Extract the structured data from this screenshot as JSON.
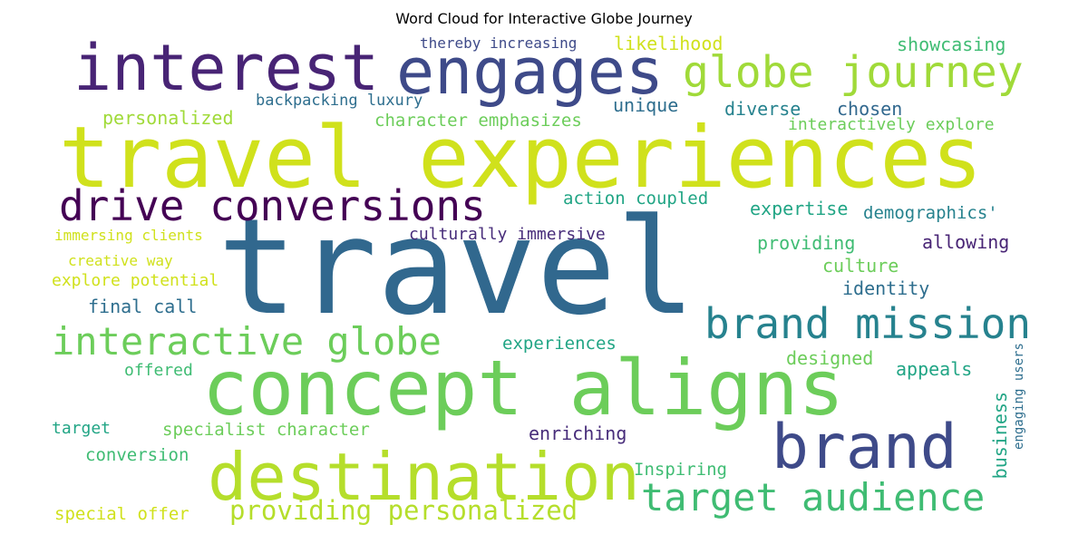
{
  "title": "Word Cloud for Interactive Globe Journey",
  "palette": {
    "dark_purple": "#482475",
    "deep_purple": "#472c7a",
    "indigo": "#3e4a89",
    "blue": "#31688e",
    "steel_blue": "#2e6e8e",
    "teal": "#26828e",
    "sea_green": "#21a585",
    "green": "#3fbc73",
    "light_green": "#6ccd5a",
    "lime": "#b5de2b",
    "yellow": "#d0e11c"
  },
  "words": [
    {
      "text": "travel",
      "color": "#31688e"
    },
    {
      "text": "travel experiences",
      "color": "#d0e11c"
    },
    {
      "text": "concept aligns",
      "color": "#6ccd5a"
    },
    {
      "text": "interest",
      "color": "#482475"
    },
    {
      "text": "engages",
      "color": "#3e4a89"
    },
    {
      "text": "destination",
      "color": "#b5de2b"
    },
    {
      "text": "brand",
      "color": "#3e4a89"
    },
    {
      "text": "globe journey",
      "color": "#a0da39"
    },
    {
      "text": "drive conversions",
      "color": "#440154"
    },
    {
      "text": "brand mission",
      "color": "#26828e"
    },
    {
      "text": "interactive globe",
      "color": "#6ccd5a"
    },
    {
      "text": "target audience",
      "color": "#3fbc73"
    },
    {
      "text": "providing personalized",
      "color": "#b5de2b"
    },
    {
      "text": "thereby increasing",
      "color": "#3e4a89"
    },
    {
      "text": "likelihood",
      "color": "#d0e11c"
    },
    {
      "text": "showcasing",
      "color": "#3fbc73"
    },
    {
      "text": "backpacking luxury",
      "color": "#2e6e8e"
    },
    {
      "text": "unique",
      "color": "#2e6e8e"
    },
    {
      "text": "diverse",
      "color": "#26828e"
    },
    {
      "text": "chosen",
      "color": "#31688e"
    },
    {
      "text": "personalized",
      "color": "#a0da39"
    },
    {
      "text": "character emphasizes",
      "color": "#6ccd5a"
    },
    {
      "text": "interactively explore",
      "color": "#6ccd5a"
    },
    {
      "text": "action coupled",
      "color": "#21a585"
    },
    {
      "text": "expertise",
      "color": "#21a585"
    },
    {
      "text": "demographics'",
      "color": "#26828e"
    },
    {
      "text": "immersing clients",
      "color": "#d0e11c"
    },
    {
      "text": "culturally immersive",
      "color": "#472c7a"
    },
    {
      "text": "providing",
      "color": "#3fbc73"
    },
    {
      "text": "allowing",
      "color": "#482475"
    },
    {
      "text": "creative way",
      "color": "#d0e11c"
    },
    {
      "text": "culture",
      "color": "#6ccd5a"
    },
    {
      "text": "explore potential",
      "color": "#d0e11c"
    },
    {
      "text": "identity",
      "color": "#2e6e8e"
    },
    {
      "text": "final call",
      "color": "#2e6e8e"
    },
    {
      "text": "experiences",
      "color": "#21a585"
    },
    {
      "text": "designed",
      "color": "#6ccd5a"
    },
    {
      "text": "offered",
      "color": "#3fbc73"
    },
    {
      "text": "appeals",
      "color": "#21a585"
    },
    {
      "text": "business",
      "color": "#21a585"
    },
    {
      "text": "engaging users",
      "color": "#2e6e8e"
    },
    {
      "text": "target",
      "color": "#21a585"
    },
    {
      "text": "specialist character",
      "color": "#6ccd5a"
    },
    {
      "text": "enriching",
      "color": "#472c7a"
    },
    {
      "text": "conversion",
      "color": "#3fbc73"
    },
    {
      "text": "Inspiring",
      "color": "#3fbc73"
    },
    {
      "text": "special offer",
      "color": "#d0e11c"
    }
  ]
}
